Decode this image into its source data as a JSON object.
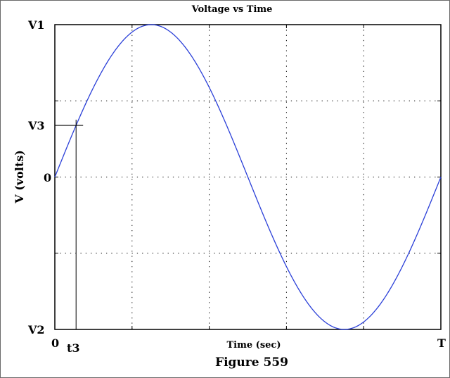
{
  "chart_data": {
    "type": "line",
    "title": "Voltage vs Time",
    "xlabel": "Time (sec)",
    "ylabel": "V (volts)",
    "caption": "Figure 559",
    "x_ticks": [
      "0",
      "t3",
      "T"
    ],
    "y_ticks": [
      "V1",
      "V3",
      "0",
      "V2"
    ],
    "grid": true,
    "series": [
      {
        "color": "#2a3fd8",
        "function": "sine",
        "x": [
          0,
          0.05,
          0.1,
          0.15,
          0.2,
          0.25,
          0.3,
          0.35,
          0.4,
          0.45,
          0.5,
          0.55,
          0.6,
          0.65,
          0.7,
          0.75,
          0.8,
          0.85,
          0.9,
          0.95,
          1
        ],
        "y": [
          0,
          0.309,
          0.588,
          0.809,
          0.951,
          1,
          0.951,
          0.809,
          0.588,
          0.309,
          0,
          -0.309,
          -0.588,
          -0.809,
          -0.951,
          -1,
          -0.951,
          -0.809,
          -0.588,
          -0.309,
          0
        ]
      }
    ],
    "annotations": [
      {
        "label": "t3",
        "x": 0.055,
        "y_label": "V3"
      }
    ]
  }
}
